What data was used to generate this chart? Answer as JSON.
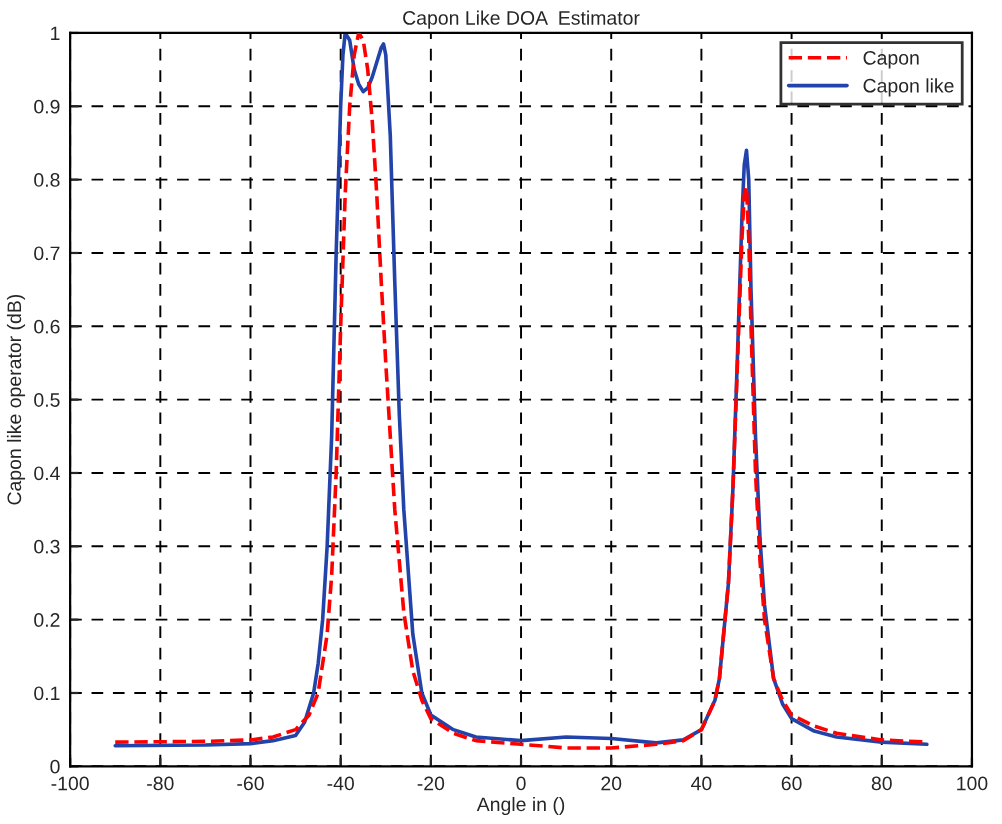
{
  "chart_data": {
    "type": "line",
    "title": "Capon Like DOA  Estimator",
    "xlabel": "Angle in ()",
    "ylabel": "Capon like operator (dB)",
    "xlim": [
      -100,
      100
    ],
    "xticks": [
      -100,
      -80,
      -60,
      -40,
      -20,
      0,
      20,
      40,
      60,
      80,
      100
    ],
    "ylim": [
      0,
      1
    ],
    "yticks": [
      0,
      0.1,
      0.2,
      0.3,
      0.4,
      0.5,
      0.6,
      0.7,
      0.8,
      0.9,
      1
    ],
    "grid": true,
    "legend": "top right",
    "series": [
      {
        "name": "Capon",
        "color": "#ff0000",
        "line_style": "dashed",
        "x": [
          -90,
          -70,
          -60,
          -55,
          -50,
          -47,
          -45,
          -43,
          -42,
          -41,
          -40,
          -39,
          -38,
          -37,
          -36,
          -35,
          -34,
          -33,
          -32,
          -31,
          -30,
          -29,
          -28,
          -26,
          -24,
          -22,
          -20,
          -15,
          -10,
          0,
          10,
          20,
          30,
          36,
          40,
          43,
          44,
          46,
          47,
          48,
          49,
          49.5,
          50,
          50.5,
          51,
          52,
          53,
          54,
          56,
          58,
          60,
          65,
          70,
          80,
          90
        ],
        "values": [
          0.033,
          0.034,
          0.036,
          0.04,
          0.05,
          0.07,
          0.1,
          0.18,
          0.26,
          0.4,
          0.6,
          0.78,
          0.9,
          0.97,
          1.0,
          0.99,
          0.95,
          0.88,
          0.78,
          0.66,
          0.55,
          0.45,
          0.35,
          0.21,
          0.13,
          0.09,
          0.065,
          0.045,
          0.035,
          0.03,
          0.025,
          0.025,
          0.03,
          0.035,
          0.05,
          0.09,
          0.12,
          0.25,
          0.38,
          0.55,
          0.72,
          0.78,
          0.79,
          0.72,
          0.6,
          0.4,
          0.28,
          0.2,
          0.12,
          0.09,
          0.07,
          0.055,
          0.045,
          0.036,
          0.033
        ]
      },
      {
        "name": "Capon like",
        "color": "#2244aa",
        "line_style": "solid",
        "x": [
          -90,
          -70,
          -60,
          -55,
          -50,
          -48,
          -46,
          -45,
          -44,
          -43,
          -42,
          -41,
          -40,
          -39.5,
          -39,
          -38,
          -37,
          -36,
          -35,
          -34,
          -33,
          -32,
          -31,
          -30.5,
          -30,
          -29,
          -28,
          -27,
          -26,
          -24,
          -22,
          -20,
          -15,
          -10,
          0,
          10,
          20,
          30,
          36,
          40,
          43,
          44,
          46,
          47,
          48,
          49,
          49.5,
          50,
          50.5,
          51,
          52,
          53,
          54,
          56,
          58,
          60,
          65,
          70,
          80,
          90
        ],
        "values": [
          0.028,
          0.029,
          0.031,
          0.035,
          0.042,
          0.06,
          0.1,
          0.14,
          0.2,
          0.3,
          0.45,
          0.7,
          0.9,
          0.97,
          1.0,
          0.99,
          0.95,
          0.93,
          0.92,
          0.925,
          0.94,
          0.96,
          0.98,
          0.985,
          0.97,
          0.86,
          0.66,
          0.48,
          0.35,
          0.18,
          0.1,
          0.07,
          0.05,
          0.04,
          0.035,
          0.04,
          0.038,
          0.032,
          0.036,
          0.05,
          0.09,
          0.12,
          0.25,
          0.38,
          0.56,
          0.75,
          0.82,
          0.84,
          0.8,
          0.65,
          0.45,
          0.31,
          0.22,
          0.12,
          0.085,
          0.065,
          0.048,
          0.04,
          0.033,
          0.03
        ]
      }
    ]
  }
}
